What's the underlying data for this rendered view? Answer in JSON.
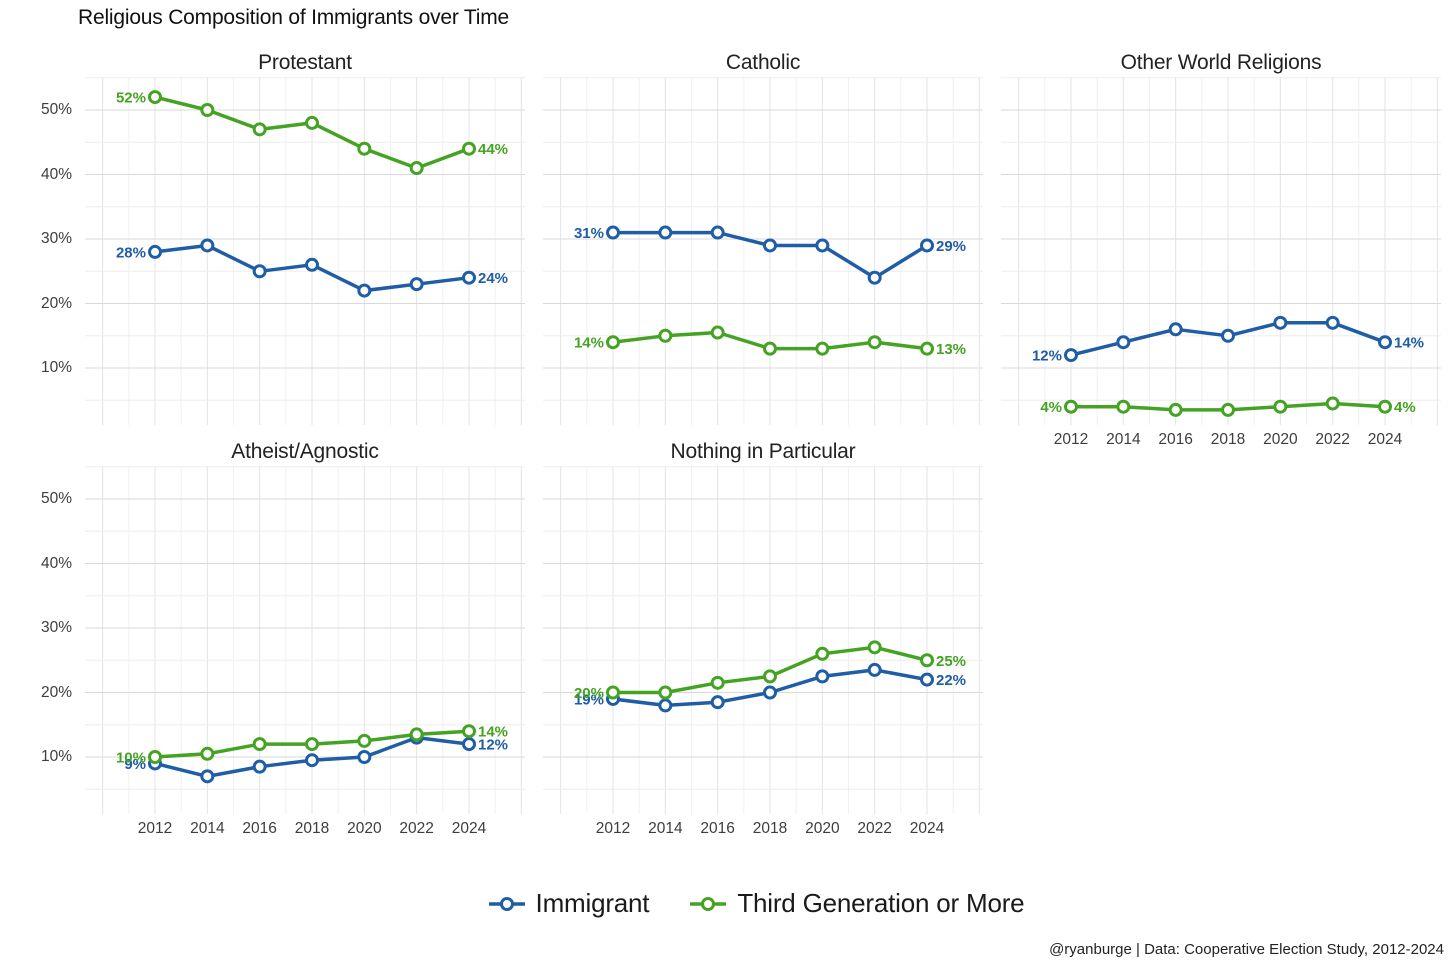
{
  "page_title": "Religious Composition of Immigrants over Time",
  "footer_credit": "@ryanburge | Data: Cooperative Election Study, 2012-2024",
  "legend": {
    "items": [
      {
        "label": "Immigrant",
        "color": "#1f5da6"
      },
      {
        "label": "Third Generation or More",
        "color": "#44a322"
      }
    ]
  },
  "chart_data": {
    "type": "line",
    "title": "Religious Composition of Immigrants over Time",
    "xlabel": "",
    "ylabel": "",
    "x": [
      2012,
      2014,
      2016,
      2018,
      2020,
      2022,
      2024
    ],
    "x_tick_labels": [
      "2012",
      "2014",
      "2016",
      "2018",
      "2020",
      "2022",
      "2024"
    ],
    "y_ticks": [
      10,
      20,
      30,
      40,
      50
    ],
    "y_tick_labels": [
      "10%",
      "20%",
      "30%",
      "40%",
      "50%"
    ],
    "ylim": [
      1,
      54
    ],
    "grid": "major and minor light gray gridlines",
    "legend_position": "bottom",
    "marker": "open-circle",
    "panels": [
      {
        "title": "Protestant",
        "series": [
          {
            "name": "Immigrant",
            "color": "#1f5da6",
            "values": [
              28,
              29,
              25,
              26,
              22,
              23,
              24
            ],
            "first_point_label": "28%",
            "last_point_label": "24%"
          },
          {
            "name": "Third Generation or More",
            "color": "#44a322",
            "values": [
              52,
              50,
              47,
              48,
              44,
              41,
              44
            ],
            "first_point_label": "52%",
            "last_point_label": "44%"
          }
        ]
      },
      {
        "title": "Catholic",
        "series": [
          {
            "name": "Immigrant",
            "color": "#1f5da6",
            "values": [
              31,
              31,
              31,
              29,
              29,
              24,
              29
            ],
            "first_point_label": "31%",
            "last_point_label": "29%"
          },
          {
            "name": "Third Generation or More",
            "color": "#44a322",
            "values": [
              14,
              15,
              15.5,
              13,
              13,
              14,
              13
            ],
            "first_point_label": "14%",
            "last_point_label": "13%"
          }
        ]
      },
      {
        "title": "Other World Religions",
        "series": [
          {
            "name": "Immigrant",
            "color": "#1f5da6",
            "values": [
              12,
              14,
              16,
              15,
              17,
              17,
              14
            ],
            "first_point_label": "12%",
            "last_point_label": "14%"
          },
          {
            "name": "Third Generation or More",
            "color": "#44a322",
            "values": [
              4,
              4,
              3.5,
              3.5,
              4,
              4.5,
              4
            ],
            "first_point_label": "4%",
            "last_point_label": "4%"
          }
        ]
      },
      {
        "title": "Atheist/Agnostic",
        "series": [
          {
            "name": "Immigrant",
            "color": "#1f5da6",
            "values": [
              9,
              7,
              8.5,
              9.5,
              10,
              13,
              12
            ],
            "first_point_label": "9%",
            "last_point_label": "12%"
          },
          {
            "name": "Third Generation or More",
            "color": "#44a322",
            "values": [
              10,
              10.5,
              12,
              12,
              12.5,
              13.5,
              14
            ],
            "first_point_label": "10%",
            "last_point_label": "14%"
          }
        ]
      },
      {
        "title": "Nothing in Particular",
        "series": [
          {
            "name": "Immigrant",
            "color": "#1f5da6",
            "values": [
              19,
              18,
              18.5,
              20,
              22.5,
              23.5,
              22
            ],
            "first_point_label": "19%",
            "last_point_label": "22%"
          },
          {
            "name": "Third Generation or More",
            "color": "#44a322",
            "values": [
              20,
              20,
              21.5,
              22.5,
              26,
              27,
              25
            ],
            "first_point_label": "20%",
            "last_point_label": "25%"
          }
        ]
      }
    ]
  }
}
